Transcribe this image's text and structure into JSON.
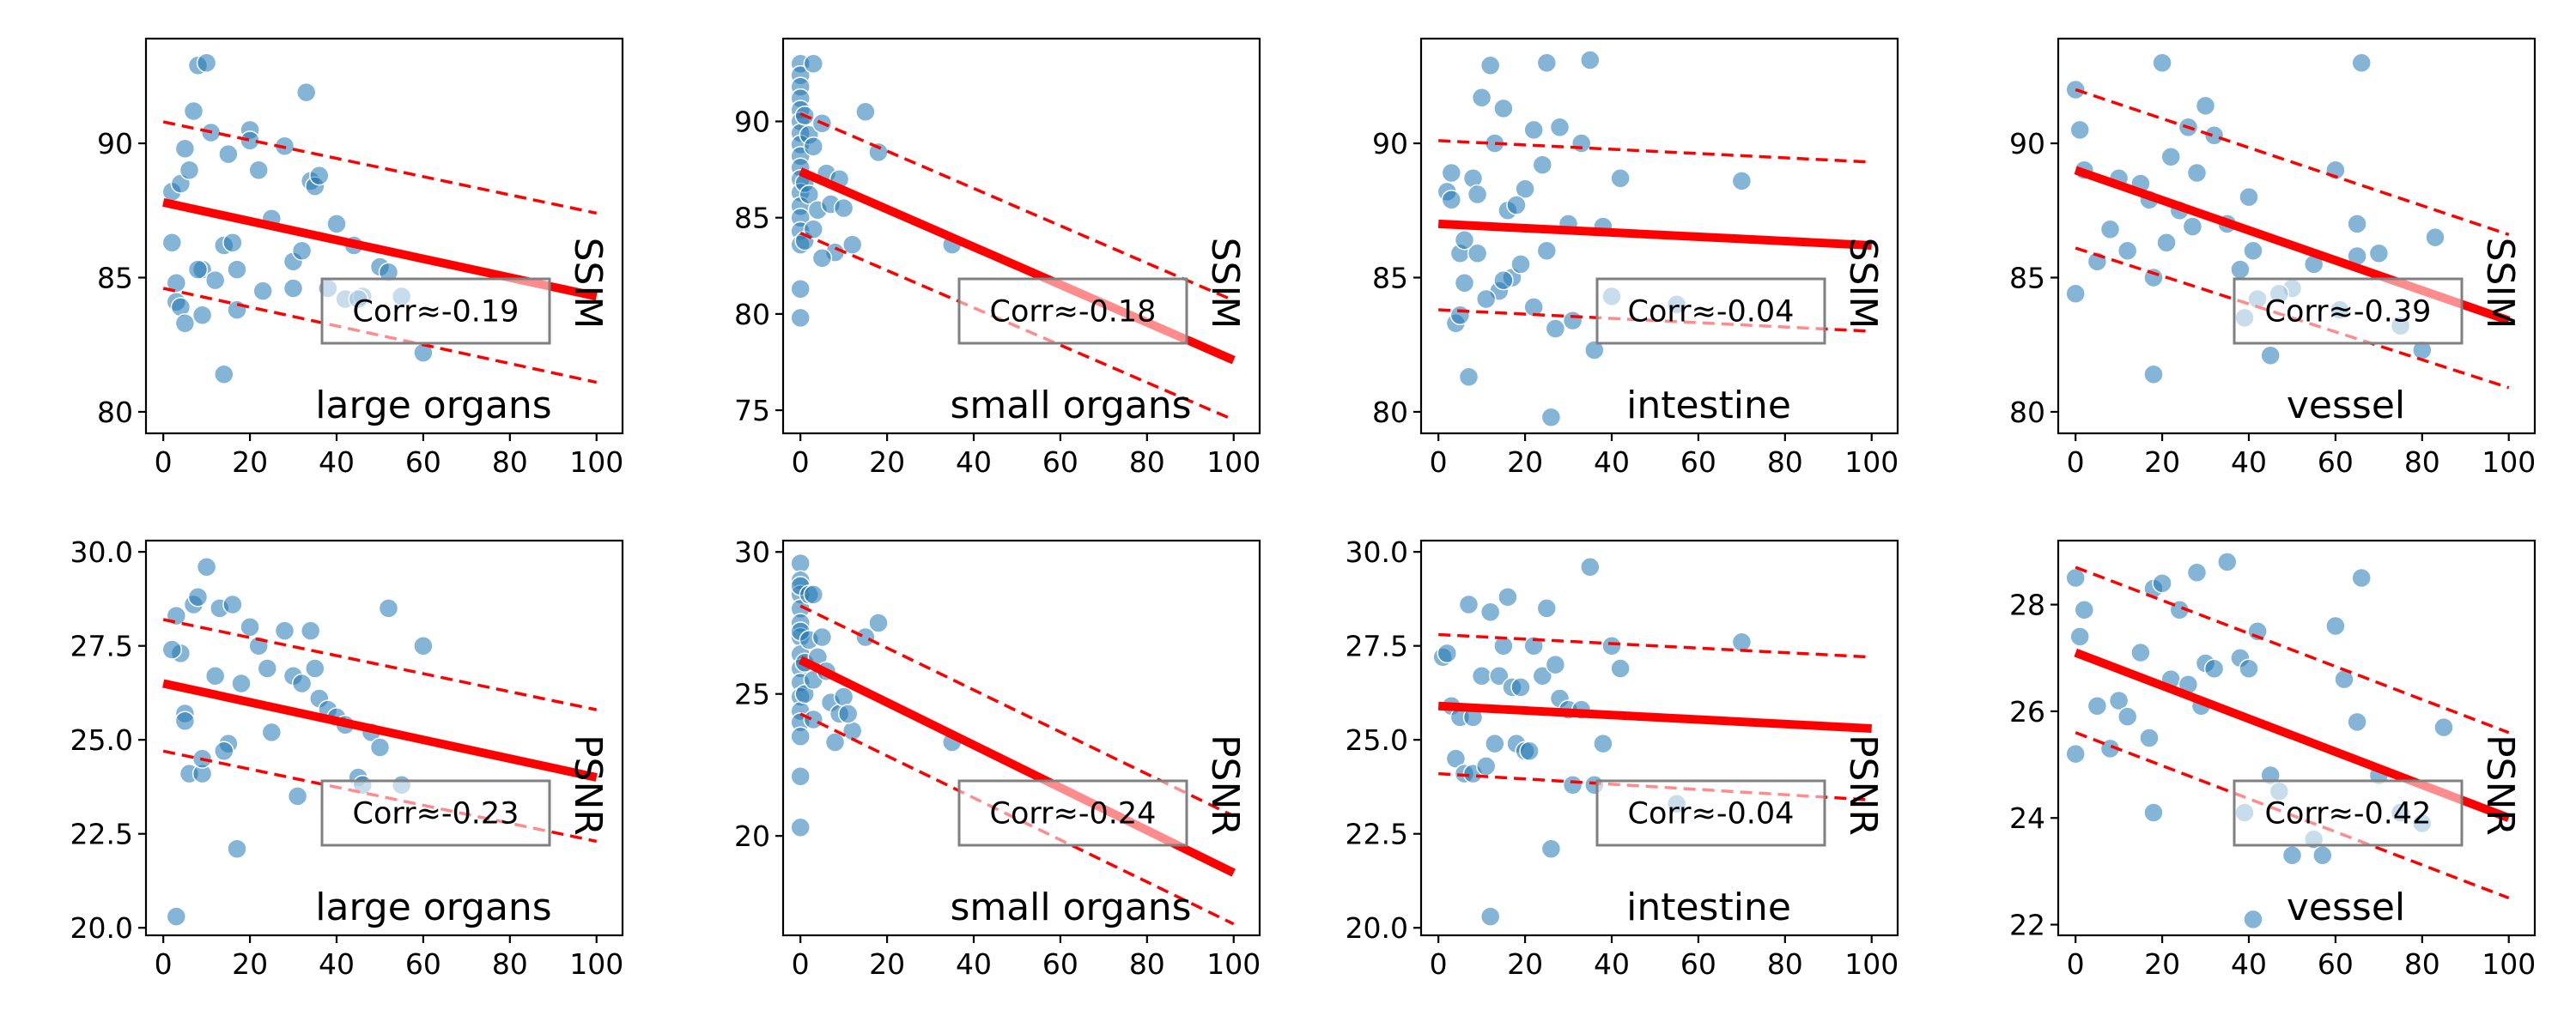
{
  "chart_data": [
    {
      "type": "scatter",
      "metric": "SSIM",
      "group": "large organs",
      "corr_label": "Corr≈-0.19",
      "xlim": [
        -4,
        106
      ],
      "ylim": [
        79.2,
        93.9
      ],
      "xticks": [
        0,
        20,
        40,
        60,
        80,
        100
      ],
      "yticks": [
        80,
        85,
        90
      ],
      "regression": {
        "x": [
          0,
          100
        ],
        "y": [
          87.8,
          84.3
        ]
      },
      "band_upper": {
        "x": [
          0,
          100
        ],
        "y": [
          90.8,
          87.4
        ]
      },
      "band_lower": {
        "x": [
          0,
          100
        ],
        "y": [
          84.6,
          81.1
        ]
      },
      "x": [
        2,
        4,
        3,
        5,
        6,
        8,
        7,
        10,
        11,
        9,
        14,
        15,
        16,
        17,
        20,
        20,
        22,
        25,
        28,
        30,
        32,
        33,
        34,
        35,
        36,
        40,
        42,
        44,
        46,
        50,
        52,
        55,
        60,
        3,
        4,
        5,
        8,
        12,
        17,
        23,
        30,
        38,
        45,
        2,
        9,
        14
      ],
      "y": [
        88.2,
        88.5,
        84.8,
        89.8,
        89.0,
        92.9,
        91.2,
        93.0,
        90.4,
        85.3,
        86.2,
        89.6,
        86.3,
        85.3,
        90.5,
        90.1,
        89.0,
        87.2,
        89.9,
        85.6,
        86.0,
        91.9,
        88.6,
        88.4,
        88.8,
        87.0,
        84.2,
        86.2,
        84.3,
        85.4,
        85.2,
        84.3,
        82.2,
        84.1,
        83.9,
        83.3,
        85.3,
        84.9,
        83.8,
        84.5,
        84.6,
        84.6,
        84.2,
        86.3,
        83.6,
        81.4
      ]
    },
    {
      "type": "scatter",
      "metric": "SSIM",
      "group": "small organs",
      "corr_label": "Corr≈-0.18",
      "xlim": [
        -4,
        106
      ],
      "ylim": [
        73.8,
        94.3
      ],
      "xticks": [
        0,
        20,
        40,
        60,
        80,
        100
      ],
      "yticks": [
        75,
        80,
        85,
        90
      ],
      "regression": {
        "x": [
          0,
          100
        ],
        "y": [
          87.4,
          77.6
        ]
      },
      "band_upper": {
        "x": [
          0,
          100
        ],
        "y": [
          90.4,
          80.7
        ]
      },
      "band_lower": {
        "x": [
          0,
          100
        ],
        "y": [
          84.2,
          74.5
        ]
      },
      "x": [
        0,
        0,
        0,
        0,
        0,
        0,
        0,
        0,
        0,
        0,
        0,
        0,
        0,
        0,
        0,
        0,
        0,
        0,
        1,
        1,
        1,
        2,
        2,
        3,
        3,
        4,
        5,
        6,
        7,
        8,
        9,
        10,
        12,
        15,
        18,
        35,
        3,
        5
      ],
      "y": [
        93.0,
        92.4,
        91.8,
        91.2,
        90.6,
        90.0,
        89.4,
        88.8,
        88.2,
        87.6,
        87.0,
        86.3,
        85.6,
        85.0,
        84.3,
        83.6,
        81.3,
        79.8,
        90.3,
        86.8,
        83.8,
        89.3,
        86.2,
        88.7,
        84.4,
        85.4,
        89.9,
        87.3,
        85.7,
        83.2,
        87.0,
        85.5,
        83.6,
        90.5,
        88.4,
        83.6,
        93.0,
        82.9
      ]
    },
    {
      "type": "scatter",
      "metric": "SSIM",
      "group": "intestine",
      "corr_label": "Corr≈-0.04",
      "xlim": [
        -4,
        106
      ],
      "ylim": [
        79.2,
        93.9
      ],
      "xticks": [
        0,
        20,
        40,
        60,
        80,
        100
      ],
      "yticks": [
        80,
        85,
        90
      ],
      "regression": {
        "x": [
          0,
          100
        ],
        "y": [
          87.0,
          86.2
        ]
      },
      "band_upper": {
        "x": [
          0,
          100
        ],
        "y": [
          90.1,
          89.3
        ]
      },
      "band_lower": {
        "x": [
          0,
          100
        ],
        "y": [
          83.8,
          83.0
        ]
      },
      "x": [
        2,
        3,
        4,
        6,
        5,
        8,
        10,
        12,
        13,
        15,
        16,
        17,
        20,
        22,
        24,
        25,
        28,
        30,
        33,
        35,
        38,
        40,
        42,
        55,
        70,
        7,
        9,
        14,
        19,
        25,
        27,
        31,
        5,
        6,
        11,
        18,
        22,
        26,
        36,
        3,
        9,
        15
      ],
      "y": [
        88.2,
        87.9,
        83.3,
        84.8,
        85.9,
        88.7,
        91.7,
        92.9,
        90.0,
        91.3,
        87.5,
        85.0,
        88.3,
        90.5,
        89.2,
        93.0,
        90.6,
        87.0,
        90.0,
        93.1,
        86.9,
        84.3,
        88.7,
        84.0,
        88.6,
        81.3,
        85.9,
        84.5,
        85.5,
        86.0,
        83.1,
        83.4,
        83.6,
        86.4,
        84.2,
        87.7,
        83.9,
        79.8,
        82.3,
        88.9,
        88.1,
        84.9
      ]
    },
    {
      "type": "scatter",
      "metric": "SSIM",
      "group": "vessel",
      "corr_label": "Corr≈-0.39",
      "xlim": [
        -4,
        106
      ],
      "ylim": [
        79.2,
        93.9
      ],
      "xticks": [
        0,
        20,
        40,
        60,
        80,
        100
      ],
      "yticks": [
        80,
        85,
        90
      ],
      "regression": {
        "x": [
          0,
          100
        ],
        "y": [
          89.0,
          83.4
        ]
      },
      "band_upper": {
        "x": [
          0,
          100
        ],
        "y": [
          92.0,
          86.6
        ]
      },
      "band_lower": {
        "x": [
          0,
          100
        ],
        "y": [
          86.1,
          80.9
        ]
      },
      "x": [
        0,
        1,
        2,
        5,
        8,
        10,
        15,
        18,
        20,
        22,
        24,
        26,
        28,
        30,
        32,
        35,
        38,
        40,
        42,
        45,
        50,
        55,
        60,
        65,
        66,
        70,
        75,
        80,
        83,
        0,
        12,
        17,
        21,
        27,
        39,
        41,
        47,
        61,
        65,
        18
      ],
      "y": [
        92.0,
        90.5,
        89.0,
        85.6,
        86.8,
        88.7,
        88.5,
        85.0,
        93.0,
        89.5,
        87.5,
        90.6,
        88.9,
        91.4,
        90.3,
        87.0,
        85.3,
        88.0,
        84.2,
        82.1,
        84.6,
        85.5,
        89.0,
        87.0,
        93.0,
        85.9,
        83.2,
        82.3,
        86.5,
        84.4,
        86.0,
        87.9,
        86.3,
        86.9,
        83.5,
        86.0,
        84.4,
        83.8,
        85.8,
        81.4
      ]
    },
    {
      "type": "scatter",
      "metric": "PSNR",
      "group": "large organs",
      "corr_label": "Corr≈-0.23",
      "xlim": [
        -4,
        106
      ],
      "ylim": [
        19.8,
        30.3
      ],
      "xticks": [
        0,
        20,
        40,
        60,
        80,
        100
      ],
      "yticks": [
        20.0,
        22.5,
        25.0,
        27.5,
        30.0
      ],
      "yticklabels": [
        "20.0",
        "22.5",
        "25.0",
        "27.5",
        "30.0"
      ],
      "regression": {
        "x": [
          0,
          100
        ],
        "y": [
          26.5,
          24.0
        ]
      },
      "band_upper": {
        "x": [
          0,
          100
        ],
        "y": [
          28.2,
          25.8
        ]
      },
      "band_lower": {
        "x": [
          0,
          100
        ],
        "y": [
          24.7,
          22.3
        ]
      },
      "x": [
        3,
        4,
        5,
        6,
        7,
        8,
        9,
        10,
        12,
        13,
        15,
        16,
        17,
        20,
        22,
        25,
        28,
        30,
        32,
        34,
        35,
        36,
        38,
        40,
        42,
        45,
        46,
        48,
        50,
        52,
        55,
        60,
        2,
        5,
        9,
        14,
        18,
        24,
        31,
        3
      ],
      "y": [
        28.3,
        27.3,
        25.7,
        24.1,
        28.6,
        28.8,
        24.1,
        29.6,
        26.7,
        28.5,
        24.9,
        28.6,
        22.1,
        28.0,
        27.5,
        25.2,
        27.9,
        26.7,
        26.5,
        27.9,
        26.9,
        26.1,
        25.8,
        25.6,
        25.4,
        24.0,
        23.8,
        25.2,
        24.8,
        28.5,
        23.8,
        27.5,
        27.4,
        25.5,
        24.5,
        24.7,
        26.5,
        26.9,
        23.5,
        20.3
      ]
    },
    {
      "type": "scatter",
      "metric": "PSNR",
      "group": "small organs",
      "corr_label": "Corr≈-0.24",
      "xlim": [
        -4,
        106
      ],
      "ylim": [
        16.5,
        30.4
      ],
      "xticks": [
        0,
        20,
        40,
        60,
        80,
        100
      ],
      "yticks": [
        20,
        25,
        30
      ],
      "regression": {
        "x": [
          0,
          100
        ],
        "y": [
          26.2,
          18.7
        ]
      },
      "band_upper": {
        "x": [
          0,
          100
        ],
        "y": [
          28.1,
          20.7
        ]
      },
      "band_lower": {
        "x": [
          0,
          100
        ],
        "y": [
          24.3,
          16.9
        ]
      },
      "x": [
        0,
        0,
        0,
        0,
        0,
        0,
        0,
        0,
        0,
        0,
        0,
        0,
        0,
        0,
        0,
        0,
        0,
        1,
        1,
        2,
        2,
        3,
        3,
        4,
        5,
        6,
        7,
        8,
        9,
        10,
        12,
        15,
        18,
        35,
        3,
        11
      ],
      "y": [
        29.6,
        29.0,
        28.5,
        28.0,
        27.5,
        27.0,
        26.4,
        25.9,
        25.4,
        24.9,
        24.4,
        24.0,
        23.5,
        22.1,
        20.3,
        27.2,
        28.8,
        25.0,
        26.1,
        26.9,
        28.5,
        24.1,
        25.5,
        26.3,
        27.0,
        25.8,
        24.7,
        23.3,
        24.3,
        24.9,
        23.7,
        27.0,
        27.5,
        23.3,
        28.5,
        24.3
      ]
    },
    {
      "type": "scatter",
      "metric": "PSNR",
      "group": "intestine",
      "corr_label": "Corr≈-0.04",
      "xlim": [
        -4,
        106
      ],
      "ylim": [
        19.8,
        30.3
      ],
      "xticks": [
        0,
        20,
        40,
        60,
        80,
        100
      ],
      "yticks": [
        20.0,
        22.5,
        25.0,
        27.5,
        30.0
      ],
      "yticklabels": [
        "20.0",
        "22.5",
        "25.0",
        "27.5",
        "30.0"
      ],
      "regression": {
        "x": [
          0,
          100
        ],
        "y": [
          25.9,
          25.3
        ]
      },
      "band_upper": {
        "x": [
          0,
          100
        ],
        "y": [
          27.8,
          27.2
        ]
      },
      "band_lower": {
        "x": [
          0,
          100
        ],
        "y": [
          24.1,
          23.4
        ]
      },
      "x": [
        1,
        2,
        3,
        4,
        5,
        6,
        7,
        8,
        10,
        12,
        13,
        14,
        15,
        16,
        18,
        20,
        22,
        24,
        25,
        26,
        28,
        30,
        33,
        35,
        38,
        40,
        42,
        55,
        70,
        8,
        11,
        17,
        21,
        27,
        31,
        36,
        12,
        19
      ],
      "y": [
        27.2,
        27.3,
        25.9,
        24.5,
        25.6,
        24.1,
        28.6,
        24.1,
        26.7,
        28.4,
        24.9,
        26.7,
        27.5,
        28.8,
        24.9,
        24.7,
        27.5,
        26.7,
        28.5,
        22.1,
        26.1,
        25.8,
        25.8,
        29.6,
        24.9,
        27.5,
        26.9,
        23.3,
        27.6,
        25.6,
        24.3,
        26.4,
        24.7,
        27.0,
        23.8,
        23.8,
        20.3,
        26.4
      ]
    },
    {
      "type": "scatter",
      "metric": "PSNR",
      "group": "vessel",
      "corr_label": "Corr≈-0.42",
      "xlim": [
        -4,
        106
      ],
      "ylim": [
        21.8,
        29.2
      ],
      "xticks": [
        0,
        20,
        40,
        60,
        80,
        100
      ],
      "yticks": [
        22,
        24,
        26,
        28
      ],
      "regression": {
        "x": [
          0,
          100
        ],
        "y": [
          27.1,
          24.0
        ]
      },
      "band_upper": {
        "x": [
          0,
          100
        ],
        "y": [
          28.7,
          25.6
        ]
      },
      "band_lower": {
        "x": [
          0,
          100
        ],
        "y": [
          25.6,
          22.5
        ]
      },
      "x": [
        0,
        1,
        2,
        5,
        8,
        10,
        15,
        18,
        20,
        22,
        24,
        26,
        28,
        30,
        32,
        35,
        38,
        40,
        42,
        45,
        50,
        55,
        60,
        65,
        66,
        70,
        75,
        80,
        85,
        0,
        12,
        17,
        29,
        39,
        41,
        47,
        57,
        62,
        18
      ],
      "y": [
        28.5,
        27.4,
        27.9,
        26.1,
        25.3,
        26.2,
        27.1,
        28.3,
        28.4,
        26.6,
        27.9,
        26.5,
        28.6,
        26.9,
        26.8,
        28.8,
        27.0,
        26.8,
        27.5,
        24.8,
        23.3,
        23.6,
        27.6,
        25.8,
        28.5,
        24.8,
        24.1,
        23.9,
        25.7,
        25.2,
        25.9,
        25.5,
        26.1,
        24.1,
        22.1,
        24.5,
        23.3,
        26.6,
        24.1
      ]
    }
  ]
}
